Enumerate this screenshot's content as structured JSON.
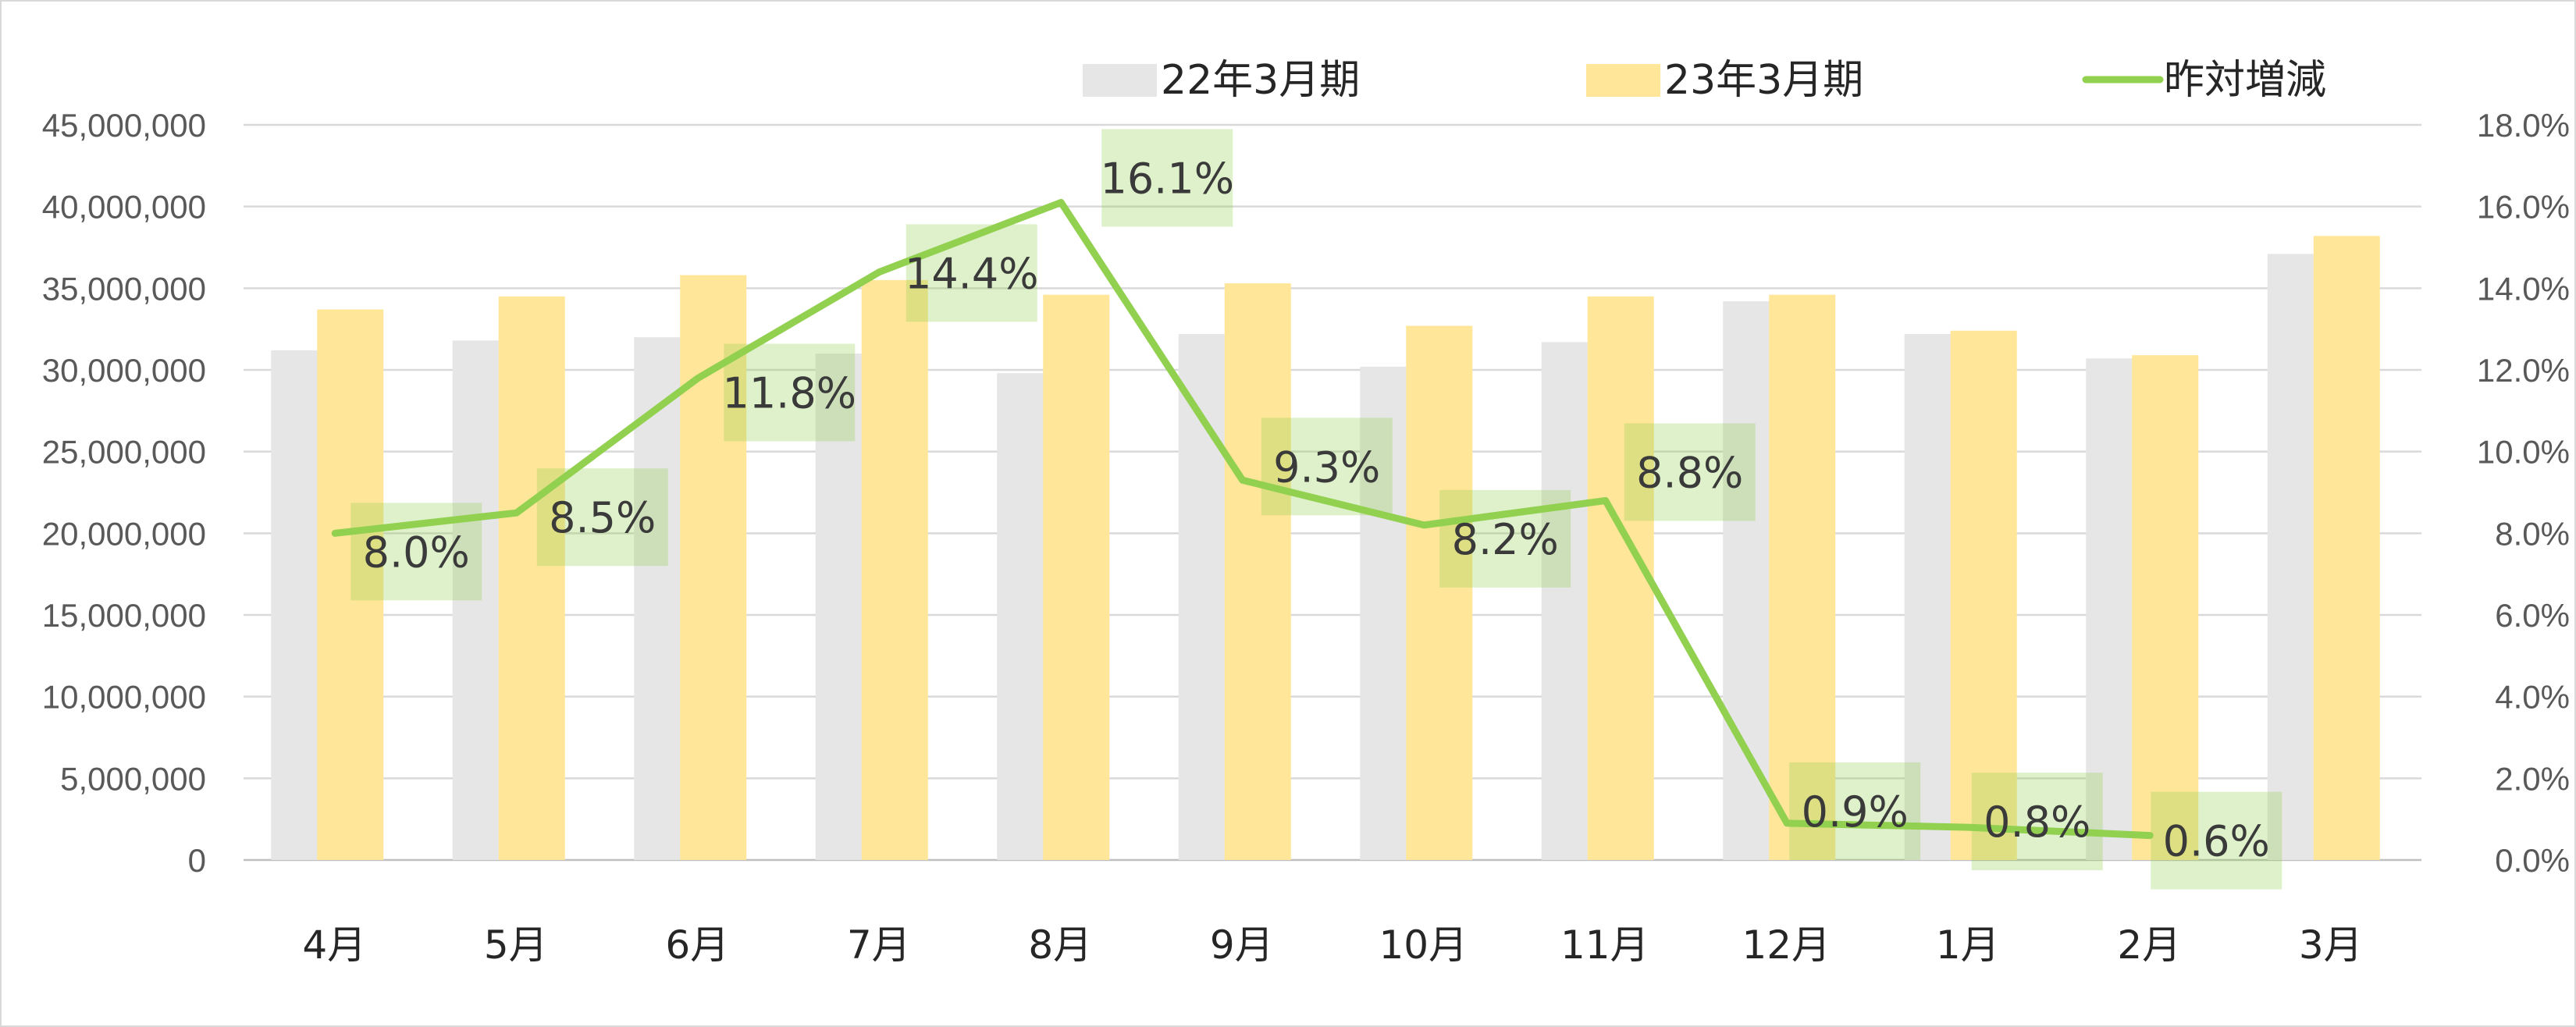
{
  "chart_data": {
    "type": "bar",
    "categories": [
      "4月",
      "5月",
      "6月",
      "7月",
      "8月",
      "9月",
      "10月",
      "11月",
      "12月",
      "1月",
      "2月",
      "3月"
    ],
    "series": [
      {
        "name": "22年3月期",
        "kind": "bar",
        "axis": "left",
        "color": "#e6e6e6",
        "values": [
          31200000,
          31800000,
          32000000,
          31000000,
          29800000,
          32200000,
          30200000,
          31700000,
          34200000,
          32200000,
          30700000,
          37100000
        ]
      },
      {
        "name": "23年3月期",
        "kind": "bar",
        "axis": "left",
        "color": "#ffe699",
        "values": [
          33700000,
          34500000,
          35800000,
          35500000,
          34600000,
          35300000,
          32700000,
          34500000,
          34600000,
          32400000,
          30900000,
          38200000
        ]
      },
      {
        "name": "昨対増減",
        "kind": "line",
        "axis": "right",
        "color": "#92d050",
        "values": [
          8.0,
          8.5,
          11.8,
          14.4,
          16.1,
          9.3,
          8.2,
          8.8,
          0.9,
          0.8,
          0.6,
          null
        ],
        "labels": [
          "8.0%",
          "8.5%",
          "11.8%",
          "14.4%",
          "16.1%",
          "9.3%",
          "8.2%",
          "8.8%",
          "0.9%",
          "0.8%",
          "0.6%",
          ""
        ]
      }
    ],
    "y_left": {
      "min": 0,
      "max": 45000000,
      "ticks": [
        "0",
        "5,000,000",
        "10,000,000",
        "15,000,000",
        "20,000,000",
        "25,000,000",
        "30,000,000",
        "35,000,000",
        "40,000,000",
        "45,000,000"
      ]
    },
    "y_right": {
      "min": 0,
      "max": 18,
      "ticks": [
        "0.0%",
        "2.0%",
        "4.0%",
        "6.0%",
        "8.0%",
        "10.0%",
        "12.0%",
        "14.0%",
        "16.0%",
        "18.0%"
      ]
    },
    "grid": true,
    "legend_position": "top"
  }
}
